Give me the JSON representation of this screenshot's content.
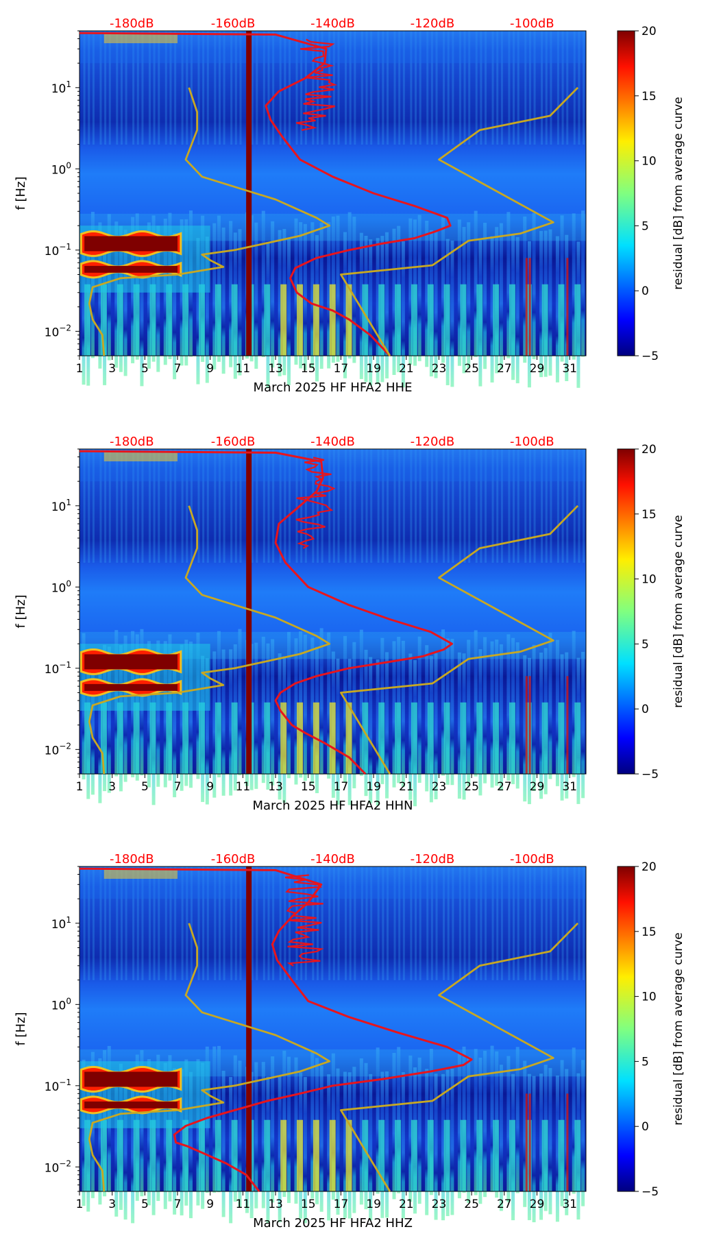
{
  "chart_data": [
    {
      "type": "heatmap",
      "xlabel": "March 2025 HF HFA2  HHE",
      "ylabel": "f [Hz]",
      "x_ticks": [
        "1",
        "3",
        "5",
        "7",
        "9",
        "11",
        "13",
        "15",
        "17",
        "19",
        "21",
        "23",
        "25",
        "27",
        "29",
        "31"
      ],
      "xlim": [
        1,
        32
      ],
      "ylim_hz": [
        0.005,
        50
      ],
      "y_tick_bases": [
        "10",
        "10",
        "10",
        "10"
      ],
      "y_tick_exponents": [
        "−2",
        "−1",
        "0",
        "1"
      ],
      "top_labels": [
        "-180dB",
        "-160dB",
        "-140dB",
        "-120dB",
        "-100dB"
      ],
      "colorbar": {
        "label": "residual [dB] from average curve",
        "ticks": [
          "−5",
          "0",
          "5",
          "10",
          "15",
          "20"
        ],
        "range": [
          -5,
          20
        ]
      },
      "series": [
        {
          "name": "psd-red-curve",
          "color": "#e8141c",
          "points": [
            [
              20.0,
              0.005
            ],
            [
              18.8,
              0.009
            ],
            [
              17.5,
              0.014
            ],
            [
              16.5,
              0.018
            ],
            [
              15.2,
              0.022
            ],
            [
              14.3,
              0.03
            ],
            [
              13.9,
              0.045
            ],
            [
              14.2,
              0.06
            ],
            [
              15.5,
              0.08
            ],
            [
              17.5,
              0.1
            ],
            [
              19.5,
              0.12
            ],
            [
              21.5,
              0.14
            ],
            [
              22.8,
              0.17
            ],
            [
              23.7,
              0.2
            ],
            [
              23.5,
              0.25
            ],
            [
              21.5,
              0.35
            ],
            [
              19.0,
              0.5
            ],
            [
              16.5,
              0.8
            ],
            [
              14.5,
              1.3
            ],
            [
              13.4,
              2.5
            ],
            [
              12.7,
              4
            ],
            [
              12.4,
              6
            ],
            [
              13.2,
              9
            ],
            [
              14.8,
              13
            ],
            [
              16.0,
              20
            ],
            [
              16.1,
              30
            ],
            [
              13.0,
              45
            ],
            [
              1.0,
              47
            ]
          ]
        },
        {
          "name": "reference-model-olive-curve",
          "color": "#c8a822",
          "points": [
            [
              2.5,
              0.005
            ],
            [
              2.4,
              0.009
            ],
            [
              1.8,
              0.014
            ],
            [
              1.6,
              0.022
            ],
            [
              1.8,
              0.035
            ],
            [
              3.5,
              0.045
            ],
            [
              7.0,
              0.05
            ],
            [
              9.8,
              0.062
            ],
            [
              9.0,
              0.075
            ],
            [
              8.5,
              0.088
            ],
            [
              10.5,
              0.1
            ],
            [
              14.5,
              0.15
            ],
            [
              16.3,
              0.2
            ],
            [
              15.5,
              0.25
            ],
            [
              13.0,
              0.42
            ],
            [
              8.5,
              0.8
            ],
            [
              7.5,
              1.3
            ],
            [
              8.2,
              3
            ],
            [
              8.2,
              5
            ],
            [
              7.7,
              10
            ],
            [
              null,
              null
            ],
            [
              20.0,
              0.005
            ],
            [
              17.0,
              0.05
            ],
            [
              22.6,
              0.065
            ],
            [
              24.8,
              0.13
            ],
            [
              28.0,
              0.16
            ],
            [
              30.0,
              0.22
            ],
            [
              23.0,
              1.3
            ],
            [
              25.5,
              3
            ],
            [
              29.8,
              4.5
            ],
            [
              31.5,
              10
            ]
          ]
        }
      ]
    },
    {
      "type": "heatmap",
      "xlabel": "March 2025 HF HFA2  HHN",
      "ylabel": "f [Hz]",
      "x_ticks": [
        "1",
        "3",
        "5",
        "7",
        "9",
        "11",
        "13",
        "15",
        "17",
        "19",
        "21",
        "23",
        "25",
        "27",
        "29",
        "31"
      ],
      "xlim": [
        1,
        32
      ],
      "ylim_hz": [
        0.005,
        50
      ],
      "y_tick_bases": [
        "10",
        "10",
        "10",
        "10"
      ],
      "y_tick_exponents": [
        "−2",
        "−1",
        "0",
        "1"
      ],
      "top_labels": [
        "-180dB",
        "-160dB",
        "-140dB",
        "-120dB",
        "-100dB"
      ],
      "colorbar": {
        "label": "residual [dB] from average curve",
        "ticks": [
          "−5",
          "0",
          "5",
          "10",
          "15",
          "20"
        ],
        "range": [
          -5,
          20
        ]
      },
      "series": [
        {
          "name": "psd-red-curve",
          "color": "#e8141c",
          "points": [
            [
              18.5,
              0.005
            ],
            [
              17.5,
              0.008
            ],
            [
              16.0,
              0.012
            ],
            [
              14.8,
              0.016
            ],
            [
              14.0,
              0.02
            ],
            [
              13.3,
              0.03
            ],
            [
              13.0,
              0.04
            ],
            [
              13.3,
              0.05
            ],
            [
              14.2,
              0.065
            ],
            [
              15.5,
              0.08
            ],
            [
              17.5,
              0.1
            ],
            [
              20.0,
              0.12
            ],
            [
              22.0,
              0.14
            ],
            [
              23.3,
              0.17
            ],
            [
              23.8,
              0.2
            ],
            [
              22.5,
              0.28
            ],
            [
              20.0,
              0.4
            ],
            [
              17.5,
              0.6
            ],
            [
              15.0,
              1.0
            ],
            [
              13.6,
              2.0
            ],
            [
              13.0,
              3.5
            ],
            [
              13.2,
              6
            ],
            [
              14.5,
              10
            ],
            [
              15.5,
              15
            ],
            [
              15.9,
              22
            ],
            [
              15.8,
              35
            ],
            [
              13.0,
              45
            ],
            [
              1.0,
              47
            ]
          ]
        },
        {
          "name": "reference-model-olive-curve",
          "color": "#c8a822",
          "points": [
            [
              2.5,
              0.005
            ],
            [
              2.4,
              0.009
            ],
            [
              1.8,
              0.014
            ],
            [
              1.6,
              0.022
            ],
            [
              1.8,
              0.035
            ],
            [
              3.5,
              0.045
            ],
            [
              7.0,
              0.05
            ],
            [
              9.8,
              0.062
            ],
            [
              9.0,
              0.075
            ],
            [
              8.5,
              0.088
            ],
            [
              10.5,
              0.1
            ],
            [
              14.5,
              0.15
            ],
            [
              16.3,
              0.2
            ],
            [
              15.5,
              0.25
            ],
            [
              13.0,
              0.42
            ],
            [
              8.5,
              0.8
            ],
            [
              7.5,
              1.3
            ],
            [
              8.2,
              3
            ],
            [
              8.2,
              5
            ],
            [
              7.7,
              10
            ],
            [
              null,
              null
            ],
            [
              20.0,
              0.005
            ],
            [
              17.0,
              0.05
            ],
            [
              22.6,
              0.065
            ],
            [
              24.8,
              0.13
            ],
            [
              28.0,
              0.16
            ],
            [
              30.0,
              0.22
            ],
            [
              23.0,
              1.3
            ],
            [
              25.5,
              3
            ],
            [
              29.8,
              4.5
            ],
            [
              31.5,
              10
            ]
          ]
        }
      ]
    },
    {
      "type": "heatmap",
      "xlabel": "March 2025 HF HFA2  HHZ",
      "ylabel": "f [Hz]",
      "x_ticks": [
        "1",
        "3",
        "5",
        "7",
        "9",
        "11",
        "13",
        "15",
        "17",
        "19",
        "21",
        "23",
        "25",
        "27",
        "29",
        "31"
      ],
      "xlim": [
        1,
        32
      ],
      "ylim_hz": [
        0.005,
        50
      ],
      "y_tick_bases": [
        "10",
        "10",
        "10",
        "10"
      ],
      "y_tick_exponents": [
        "−2",
        "−1",
        "0",
        "1"
      ],
      "top_labels": [
        "-180dB",
        "-160dB",
        "-140dB",
        "-120dB",
        "-100dB"
      ],
      "colorbar": {
        "label": "residual [dB] from average curve",
        "ticks": [
          "−5",
          "0",
          "5",
          "10",
          "15",
          "20"
        ],
        "range": [
          -5,
          20
        ]
      },
      "series": [
        {
          "name": "psd-red-curve",
          "color": "#e8141c",
          "points": [
            [
              12.0,
              0.005
            ],
            [
              11.2,
              0.008
            ],
            [
              10.0,
              0.011
            ],
            [
              8.5,
              0.015
            ],
            [
              7.6,
              0.018
            ],
            [
              6.9,
              0.02
            ],
            [
              6.8,
              0.025
            ],
            [
              7.5,
              0.032
            ],
            [
              8.8,
              0.04
            ],
            [
              10.5,
              0.05
            ],
            [
              12.5,
              0.065
            ],
            [
              14.5,
              0.08
            ],
            [
              16.5,
              0.1
            ],
            [
              19.5,
              0.12
            ],
            [
              22.5,
              0.15
            ],
            [
              24.5,
              0.18
            ],
            [
              25.0,
              0.21
            ],
            [
              23.5,
              0.3
            ],
            [
              20.5,
              0.45
            ],
            [
              17.5,
              0.7
            ],
            [
              15.0,
              1.1
            ],
            [
              14.0,
              2.0
            ],
            [
              13.1,
              3.5
            ],
            [
              12.8,
              5.5
            ],
            [
              13.2,
              8
            ],
            [
              14.0,
              12
            ],
            [
              15.0,
              18
            ],
            [
              15.8,
              30
            ],
            [
              13.0,
              45
            ],
            [
              1.0,
              47
            ]
          ]
        },
        {
          "name": "reference-model-olive-curve",
          "color": "#c8a822",
          "points": [
            [
              2.5,
              0.005
            ],
            [
              2.4,
              0.009
            ],
            [
              1.8,
              0.014
            ],
            [
              1.6,
              0.022
            ],
            [
              1.8,
              0.035
            ],
            [
              3.5,
              0.045
            ],
            [
              7.0,
              0.05
            ],
            [
              9.8,
              0.062
            ],
            [
              9.0,
              0.075
            ],
            [
              8.5,
              0.088
            ],
            [
              10.5,
              0.1
            ],
            [
              14.5,
              0.15
            ],
            [
              16.3,
              0.2
            ],
            [
              15.5,
              0.25
            ],
            [
              13.0,
              0.42
            ],
            [
              8.5,
              0.8
            ],
            [
              7.5,
              1.3
            ],
            [
              8.2,
              3
            ],
            [
              8.2,
              5
            ],
            [
              7.7,
              10
            ],
            [
              null,
              null
            ],
            [
              20.0,
              0.005
            ],
            [
              17.0,
              0.05
            ],
            [
              22.6,
              0.065
            ],
            [
              24.8,
              0.13
            ],
            [
              28.0,
              0.16
            ],
            [
              30.0,
              0.22
            ],
            [
              23.0,
              1.3
            ],
            [
              25.5,
              3
            ],
            [
              29.8,
              4.5
            ],
            [
              31.5,
              10
            ]
          ]
        }
      ]
    }
  ]
}
